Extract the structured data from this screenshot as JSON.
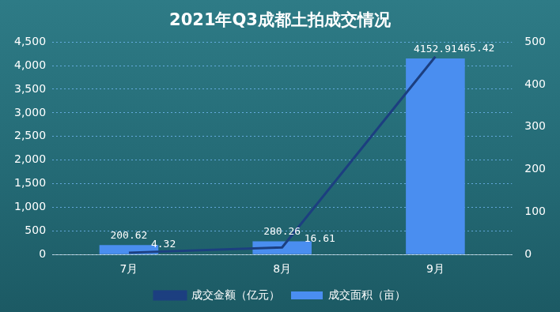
{
  "chart_data": {
    "type": "bar",
    "title": "2021年Q3成都土拍成交情况",
    "categories": [
      "7月",
      "8月",
      "9月"
    ],
    "series": [
      {
        "name": "成交面积（亩）",
        "type": "bar",
        "color": "#4a8ef0",
        "values": [
          200.62,
          280.26,
          4152.91
        ]
      },
      {
        "name": "成交金额（亿元）",
        "type": "line",
        "color": "#1c3f80",
        "axis": "y2",
        "values": [
          4.32,
          16.61,
          465.42
        ]
      }
    ],
    "ylim": [
      0,
      4500
    ],
    "yticks": [
      0,
      500,
      1000,
      1500,
      2000,
      2500,
      3000,
      3500,
      4000,
      4500
    ],
    "y2lim": [
      0,
      500
    ],
    "y2ticks": [
      0,
      100,
      200,
      300,
      400,
      500
    ],
    "grid": true,
    "data_labels": true,
    "legend": "bottom"
  }
}
